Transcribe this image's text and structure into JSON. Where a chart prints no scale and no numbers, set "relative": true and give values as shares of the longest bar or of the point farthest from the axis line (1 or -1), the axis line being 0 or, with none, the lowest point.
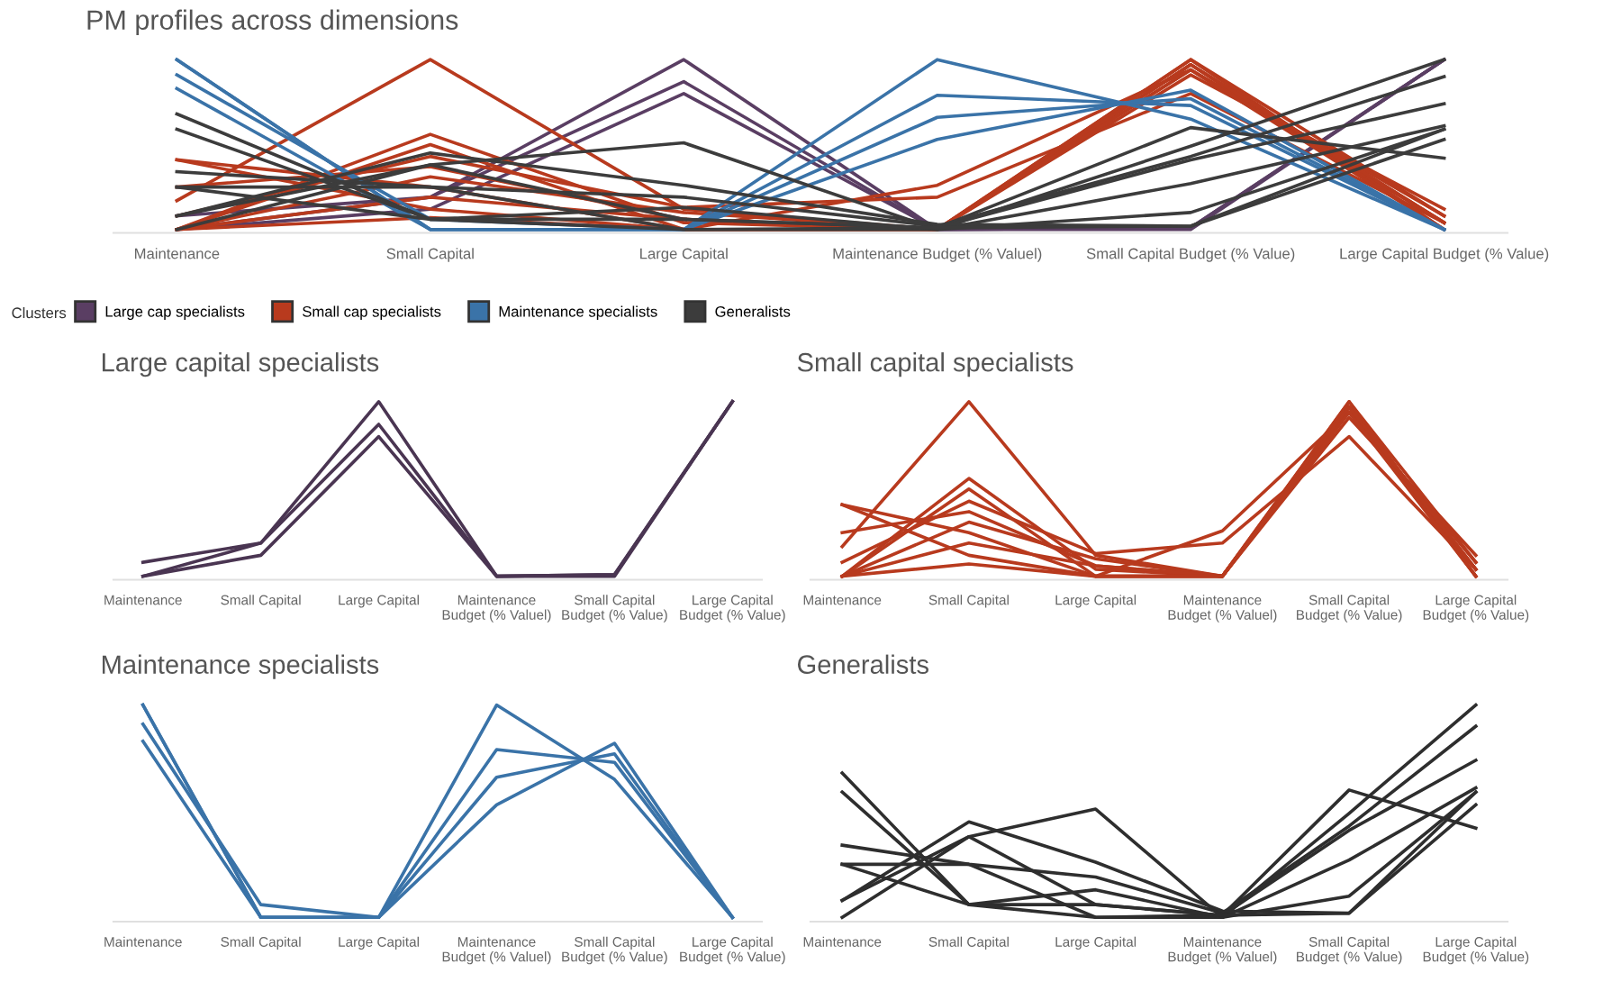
{
  "chart_data": [
    {
      "type": "line",
      "title": "PM profiles across dimensions",
      "relative": true,
      "legend": "bottom left",
      "legend_title": "Clusters",
      "categories": [
        "Maintenance",
        "Small Capital",
        "Large Capital",
        "Maintenance Budget (% Valuel)",
        "Small Capital Budget (% Value)",
        "Large Capital Budget (% Value)"
      ],
      "series": [
        {
          "name": "Large cap specialists",
          "color": "#5a3e63",
          "values": [
            0.08,
            0.19,
            1.0,
            0,
            0.01,
            1.0
          ]
        },
        {
          "color": "#5a3e63",
          "values": [
            0,
            0.19,
            0.87,
            0,
            0,
            1.0
          ]
        },
        {
          "color": "#5a3e63",
          "values": [
            0,
            0.12,
            0.8,
            0,
            0.01,
            1.0
          ]
        },
        {
          "name": "Small cap specialists",
          "color": "#b83a1e",
          "values": [
            0.17,
            1.0,
            0.12,
            0,
            0.97,
            0.04
          ]
        },
        {
          "color": "#b83a1e",
          "values": [
            0,
            0.56,
            0.04,
            0,
            1.0,
            0.08
          ]
        },
        {
          "color": "#b83a1e",
          "values": [
            0.41,
            0.25,
            0,
            0,
            0.94,
            0.04
          ]
        },
        {
          "color": "#b83a1e",
          "values": [
            0.41,
            0.12,
            0,
            0,
            0.97,
            0
          ]
        },
        {
          "color": "#b83a1e",
          "values": [
            0.25,
            0.37,
            0.06,
            0,
            0.91,
            0.12
          ]
        },
        {
          "color": "#b83a1e",
          "values": [
            0.08,
            0.43,
            0.13,
            0.19,
            0.8,
            0.04
          ]
        },
        {
          "color": "#b83a1e",
          "values": [
            0,
            0.5,
            0,
            0.26,
            0.94,
            0.08
          ]
        },
        {
          "color": "#b83a1e",
          "values": [
            0,
            0.31,
            0.1,
            0,
            1.0,
            0
          ]
        },
        {
          "color": "#b83a1e",
          "values": [
            0,
            0.19,
            0.06,
            0,
            0.97,
            0.04
          ]
        },
        {
          "color": "#b83a1e",
          "values": [
            0,
            0.07,
            0,
            0,
            0.94,
            0
          ]
        },
        {
          "name": "Maintenance specialists",
          "color": "#3a73a8",
          "values": [
            1.0,
            0,
            0,
            1.0,
            0.65,
            0
          ]
        },
        {
          "color": "#3a73a8",
          "values": [
            0.91,
            0.06,
            0,
            0.79,
            0.73,
            0
          ]
        },
        {
          "color": "#3a73a8",
          "values": [
            0.83,
            0,
            0,
            0.66,
            0.77,
            0
          ]
        },
        {
          "color": "#3a73a8",
          "values": [
            1.0,
            0,
            0,
            0.53,
            0.82,
            0
          ]
        },
        {
          "name": "Generalists",
          "color": "#3c3c3c",
          "values": [
            0.68,
            0.06,
            0.06,
            0.01,
            0.6,
            0.42
          ]
        },
        {
          "color": "#3c3c3c",
          "values": [
            0.59,
            0.06,
            0,
            0,
            0.49,
            1.0
          ]
        },
        {
          "color": "#3c3c3c",
          "values": [
            0.34,
            0.25,
            0.19,
            0.02,
            0.43,
            0.9
          ]
        },
        {
          "color": "#3c3c3c",
          "values": [
            0.25,
            0.25,
            0,
            0.01,
            0.41,
            0.74
          ]
        },
        {
          "color": "#3c3c3c",
          "values": [
            0.25,
            0.06,
            0.13,
            0,
            0.27,
            0.61
          ]
        },
        {
          "color": "#3c3c3c",
          "values": [
            0.08,
            0.38,
            0.51,
            0,
            0.1,
            0.59
          ]
        },
        {
          "color": "#3c3c3c",
          "values": [
            0.08,
            0.45,
            0.26,
            0.03,
            0.02,
            0.53
          ]
        },
        {
          "color": "#3c3c3c",
          "values": [
            0,
            0.38,
            0.06,
            0.01,
            0.02,
            0.59
          ]
        }
      ]
    },
    {
      "type": "line",
      "title": "Large capital specialists",
      "relative": true,
      "categories": [
        "Maintenance",
        "Small Capital",
        "Large Capital",
        "Maintenance\nBudget (% Valuel)",
        "Small Capital\nBudget (% Value)",
        "Large Capital\nBudget (% Value)"
      ],
      "series": [
        {
          "color": "#4a3552",
          "values": [
            0.08,
            0.19,
            1.0,
            0,
            0.01,
            1.0
          ]
        },
        {
          "color": "#4a3552",
          "values": [
            0,
            0.19,
            0.87,
            0,
            0,
            1.0
          ]
        },
        {
          "color": "#4a3552",
          "values": [
            0,
            0.12,
            0.8,
            0,
            0.01,
            1.0
          ]
        }
      ]
    },
    {
      "type": "line",
      "title": "Small capital specialists",
      "relative": true,
      "categories": [
        "Maintenance",
        "Small Capital",
        "Large Capital",
        "Maintenance\nBudget (% Valuel)",
        "Small Capital\nBudget (% Value)",
        "Large Capital\nBudget (% Value)"
      ],
      "series": [
        {
          "color": "#b83a1e",
          "values": [
            0.17,
            1.0,
            0.12,
            0,
            0.97,
            0.04
          ]
        },
        {
          "color": "#b83a1e",
          "values": [
            0,
            0.56,
            0.04,
            0,
            1.0,
            0.08
          ]
        },
        {
          "color": "#b83a1e",
          "values": [
            0.41,
            0.25,
            0,
            0,
            0.94,
            0.04
          ]
        },
        {
          "color": "#b83a1e",
          "values": [
            0.41,
            0.12,
            0,
            0,
            0.97,
            0
          ]
        },
        {
          "color": "#b83a1e",
          "values": [
            0.25,
            0.37,
            0.06,
            0,
            0.91,
            0.12
          ]
        },
        {
          "color": "#b83a1e",
          "values": [
            0.08,
            0.43,
            0.13,
            0.19,
            0.8,
            0.04
          ]
        },
        {
          "color": "#b83a1e",
          "values": [
            0,
            0.5,
            0,
            0.26,
            0.94,
            0.08
          ]
        },
        {
          "color": "#b83a1e",
          "values": [
            0,
            0.31,
            0.1,
            0,
            1.0,
            0
          ]
        },
        {
          "color": "#b83a1e",
          "values": [
            0,
            0.19,
            0.06,
            0,
            0.97,
            0.04
          ]
        },
        {
          "color": "#b83a1e",
          "values": [
            0,
            0.07,
            0,
            0,
            0.94,
            0
          ]
        }
      ]
    },
    {
      "type": "line",
      "title": "Maintenance specialists",
      "relative": true,
      "categories": [
        "Maintenance",
        "Small Capital",
        "Large Capital",
        "Maintenance\nBudget (% Valuel)",
        "Small Capital\nBudget (% Value)",
        "Large Capital\nBudget (% Value)"
      ],
      "series": [
        {
          "color": "#3a73a8",
          "values": [
            1.0,
            0,
            0,
            1.0,
            0.65,
            0
          ]
        },
        {
          "color": "#3a73a8",
          "values": [
            0.91,
            0.06,
            0,
            0.79,
            0.73,
            0
          ]
        },
        {
          "color": "#3a73a8",
          "values": [
            0.83,
            0,
            0,
            0.66,
            0.77,
            0
          ]
        },
        {
          "color": "#3a73a8",
          "values": [
            1.0,
            0,
            0,
            0.53,
            0.82,
            0
          ]
        }
      ]
    },
    {
      "type": "line",
      "title": "Generalists",
      "relative": true,
      "categories": [
        "Maintenance",
        "Small Capital",
        "Large Capital",
        "Maintenance\nBudget (% Valuel)",
        "Small Capital\nBudget (% Value)",
        "Large Capital\nBudget (% Value)"
      ],
      "series": [
        {
          "color": "#2e2e2e",
          "values": [
            0.68,
            0.06,
            0.06,
            0.01,
            0.6,
            0.42
          ]
        },
        {
          "color": "#2e2e2e",
          "values": [
            0.59,
            0.06,
            0,
            0,
            0.49,
            1.0
          ]
        },
        {
          "color": "#2e2e2e",
          "values": [
            0.34,
            0.25,
            0.19,
            0.02,
            0.43,
            0.9
          ]
        },
        {
          "color": "#2e2e2e",
          "values": [
            0.25,
            0.25,
            0,
            0.01,
            0.41,
            0.74
          ]
        },
        {
          "color": "#2e2e2e",
          "values": [
            0.25,
            0.06,
            0.13,
            0,
            0.27,
            0.61
          ]
        },
        {
          "color": "#2e2e2e",
          "values": [
            0.08,
            0.38,
            0.51,
            0,
            0.1,
            0.59
          ]
        },
        {
          "color": "#2e2e2e",
          "values": [
            0.08,
            0.45,
            0.26,
            0.03,
            0.02,
            0.53
          ]
        },
        {
          "color": "#2e2e2e",
          "values": [
            0,
            0.38,
            0.06,
            0.01,
            0.02,
            0.59
          ]
        }
      ]
    }
  ]
}
